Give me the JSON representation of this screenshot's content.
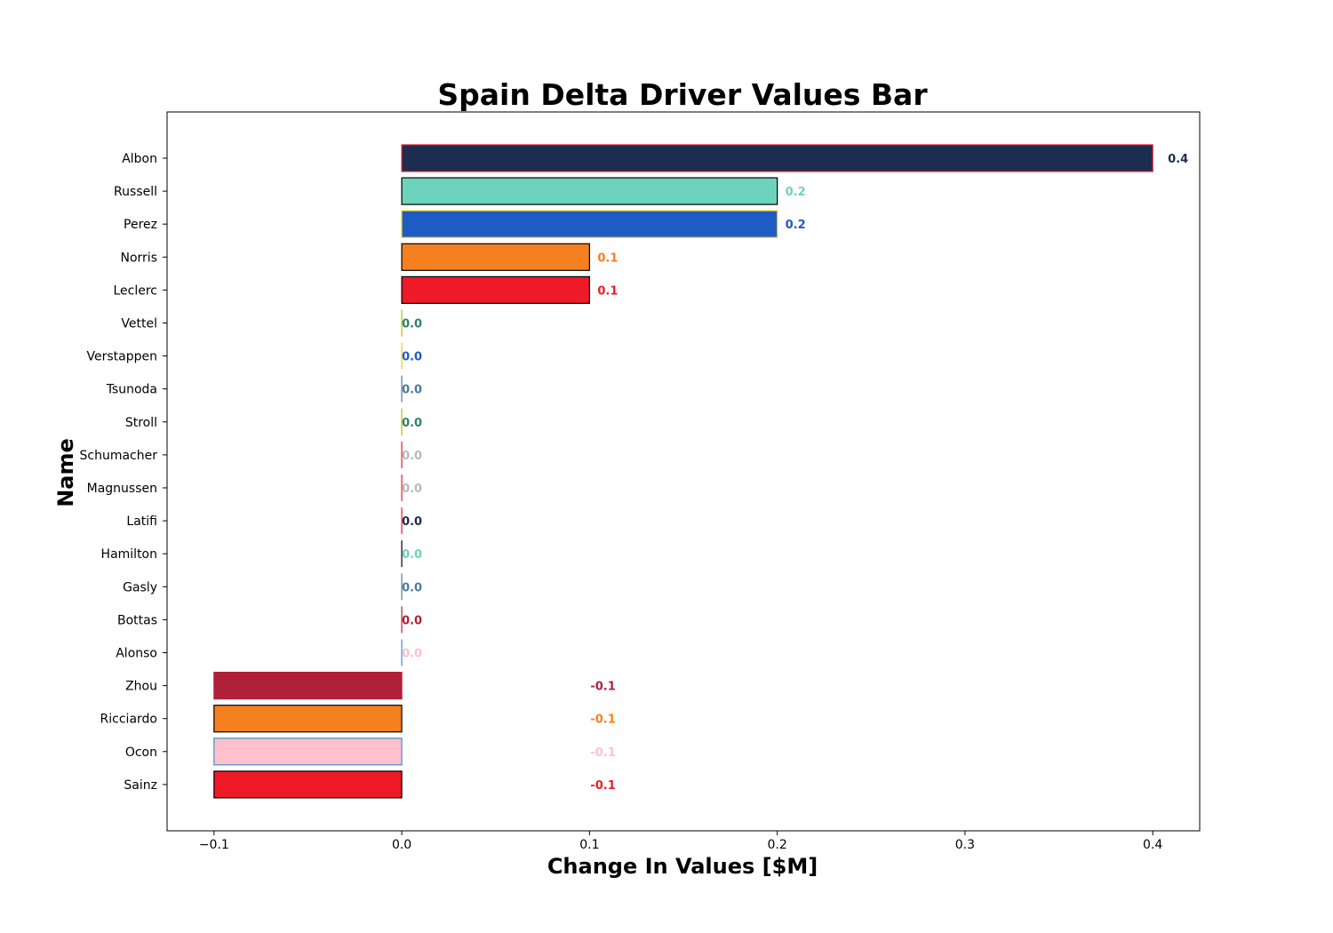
{
  "chart_data": {
    "type": "bar",
    "orientation": "horizontal",
    "title": "Spain Delta Driver Values Bar",
    "xlabel": "Change In Values [$M]",
    "ylabel": "Name",
    "xlim": [
      -0.125,
      0.425
    ],
    "xticks": [
      -0.1,
      0.0,
      0.1,
      0.2,
      0.3,
      0.4
    ],
    "xtick_labels": [
      "−0.1",
      "0.0",
      "0.1",
      "0.2",
      "0.3",
      "0.4"
    ],
    "grid": false,
    "categories": [
      "Albon",
      "Russell",
      "Perez",
      "Norris",
      "Leclerc",
      "Vettel",
      "Verstappen",
      "Tsunoda",
      "Stroll",
      "Schumacher",
      "Magnussen",
      "Latifi",
      "Hamilton",
      "Gasly",
      "Bottas",
      "Alonso",
      "Zhou",
      "Ricciardo",
      "Ocon",
      "Sainz"
    ],
    "values": [
      0.4,
      0.2,
      0.2,
      0.1,
      0.1,
      0.0,
      0.0,
      0.0,
      0.0,
      0.0,
      0.0,
      0.0,
      0.0,
      0.0,
      0.0,
      0.0,
      -0.1,
      -0.1,
      -0.1,
      -0.1
    ],
    "value_labels": [
      "0.4",
      "0.2",
      "0.2",
      "0.1",
      "0.1",
      "0.0",
      "0.0",
      "0.0",
      "0.0",
      "0.0",
      "0.0",
      "0.0",
      "0.0",
      "0.0",
      "0.0",
      "0.0",
      "-0.1",
      "-0.1",
      "-0.1",
      "-0.1"
    ],
    "fill_colors": [
      "#1c2d4f",
      "#6dd3bd",
      "#1f5bc5",
      "#f58020",
      "#ef1a27",
      "#2d826d",
      "#1e5bc6",
      "#4e7c9b",
      "#2d826d",
      "#b6babd",
      "#b6babd",
      "#1c2d4f",
      "#6dd3bd",
      "#4e7c9b",
      "#b12039",
      "#ffc0cb",
      "#b12039",
      "#f58020",
      "#ffc0cb",
      "#ef1a27"
    ],
    "edge_colors": [
      "#ef1a27",
      "#000000",
      "#f0d000",
      "#000000",
      "#000000",
      "#b5bd00",
      "#f0d000",
      "#4e7c9b",
      "#b5bd00",
      "#ef1a27",
      "#ef1a27",
      "#ef1a27",
      "#000000",
      "#4e7c9b",
      "#b12039",
      "#3b8fd6",
      "#b12039",
      "#000000",
      "#3b8fd6",
      "#000000"
    ],
    "label_colors": [
      "#1c2d4f",
      "#6dd3bd",
      "#1f5bc5",
      "#f58020",
      "#ef1a27",
      "#2d826d",
      "#1e5bc6",
      "#4e7c9b",
      "#2d826d",
      "#b6babd",
      "#b6babd",
      "#1c2d4f",
      "#6dd3bd",
      "#4e7c9b",
      "#b12039",
      "#ffc0cb",
      "#b12039",
      "#f58020",
      "#ffc0cb",
      "#ef1a27"
    ]
  }
}
